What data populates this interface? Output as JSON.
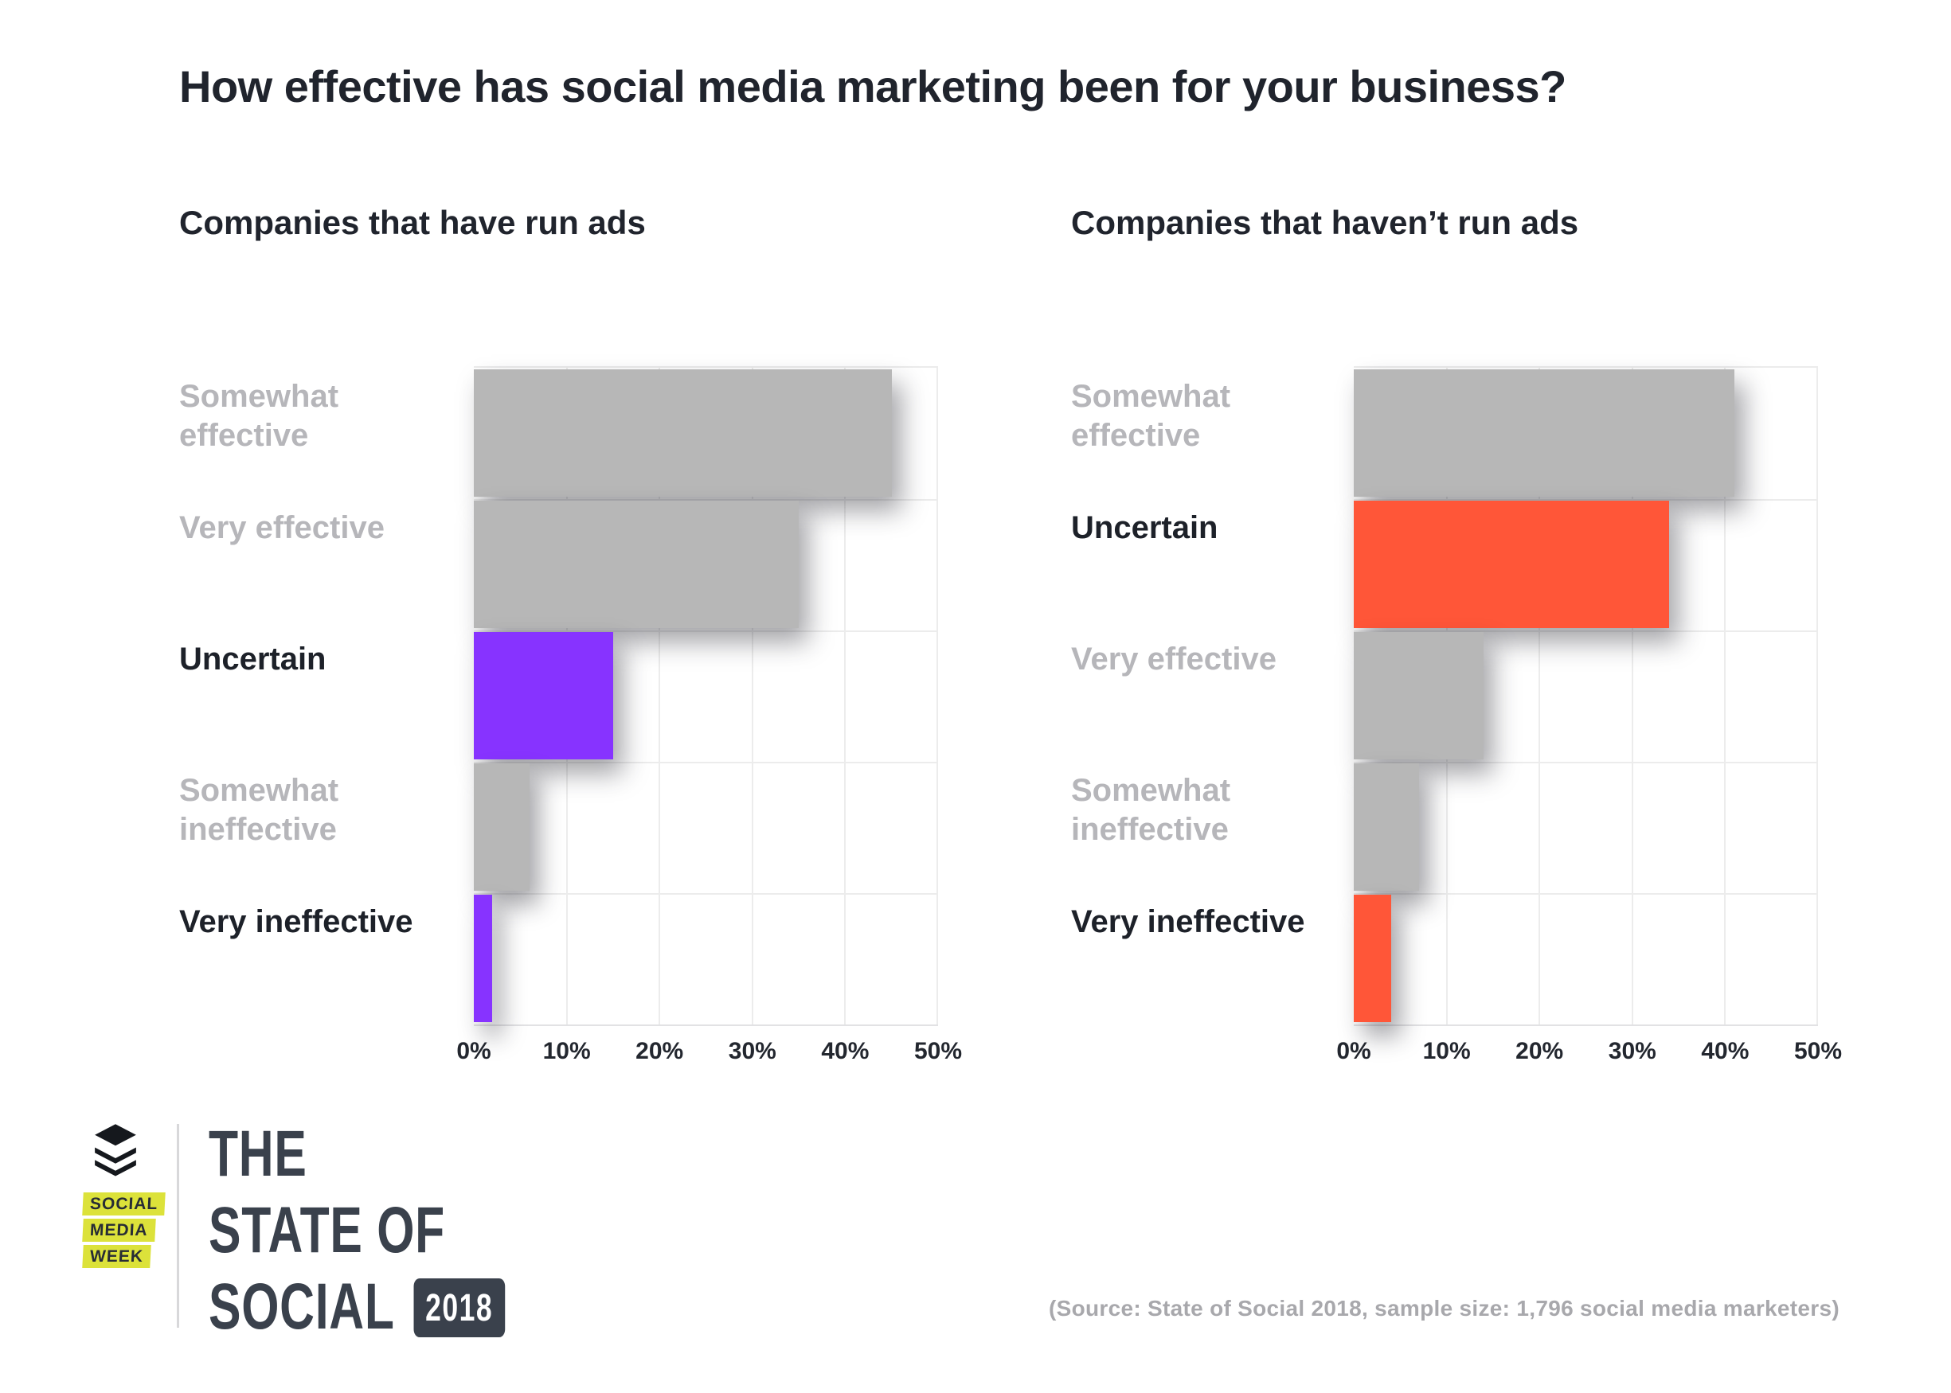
{
  "title": "How effective has social media marketing been for your business?",
  "colors": {
    "bar_default": "#b7b7b7",
    "accent_purple": "#8733ff",
    "accent_orange": "#ff5638",
    "dark_text": "#20242d",
    "gray_label": "#b6b6ba",
    "gridline": "#ececec",
    "logo_slate": "#3a414c",
    "smw_yellow": "#dce23a"
  },
  "chart_data": [
    {
      "type": "bar",
      "orientation": "horizontal",
      "title": "Companies that have run ads",
      "categories": [
        "Somewhat effective",
        "Very effective",
        "Uncertain",
        "Somewhat ineffective",
        "Very ineffective"
      ],
      "values": [
        45,
        35,
        15,
        6,
        2
      ],
      "unit": "%",
      "highlight": [
        false,
        false,
        true,
        false,
        true
      ],
      "accent": "#8733ff",
      "xlim": [
        0,
        50
      ],
      "x_tick_labels": [
        "0%",
        "10%",
        "20%",
        "30%",
        "40%",
        "50%"
      ],
      "grid": true,
      "legend": false
    },
    {
      "type": "bar",
      "orientation": "horizontal",
      "title": "Companies that haven’t run ads",
      "categories": [
        "Somewhat effective",
        "Uncertain",
        "Very effective",
        "Somewhat ineffective",
        "Very ineffective"
      ],
      "values": [
        41,
        34,
        14,
        7,
        4
      ],
      "unit": "%",
      "highlight": [
        false,
        true,
        false,
        false,
        true
      ],
      "accent": "#ff5638",
      "xlim": [
        0,
        50
      ],
      "x_tick_labels": [
        "0%",
        "10%",
        "20%",
        "30%",
        "40%",
        "50%"
      ],
      "grid": true,
      "legend": false
    }
  ],
  "footer": {
    "smw_lines": [
      "SOCIAL",
      "MEDIA",
      "WEEK"
    ],
    "logo_lines": [
      "THE",
      "STATE OF",
      "SOCIAL"
    ],
    "badge": "2018",
    "source": "(Source: State of Social 2018, sample size: 1,796 social media marketers)"
  }
}
